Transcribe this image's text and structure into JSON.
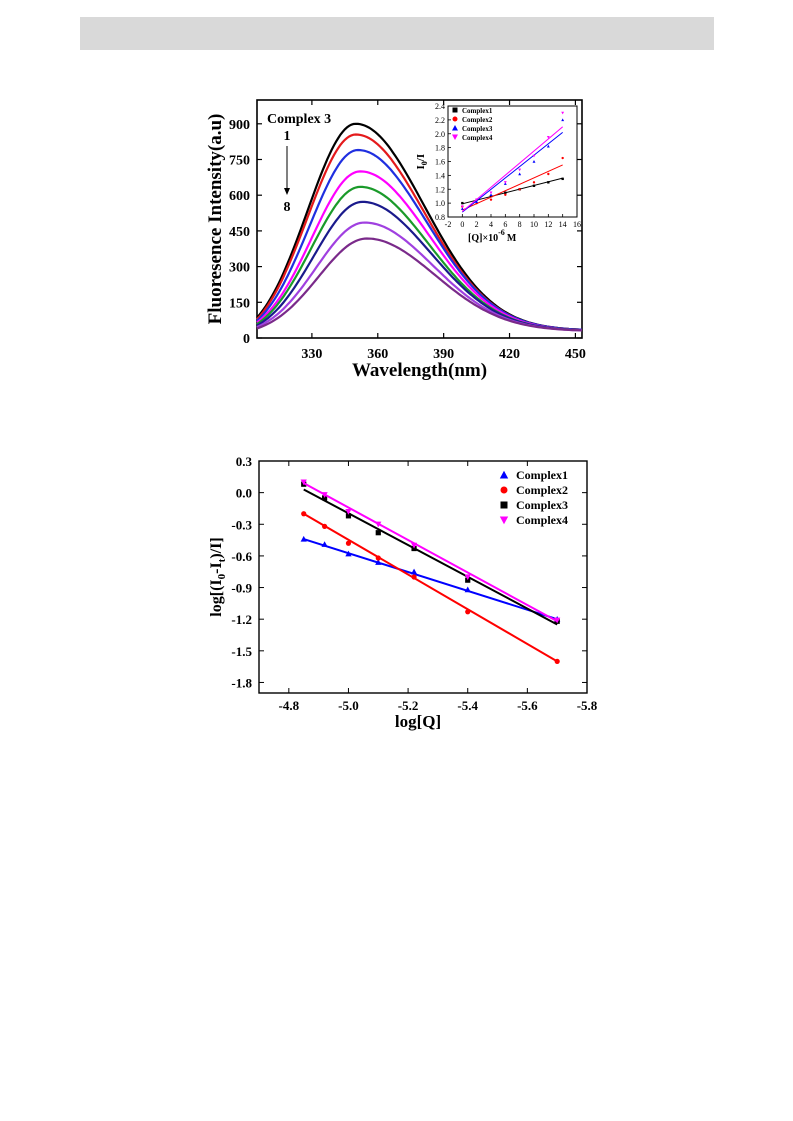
{
  "chart_data": [
    {
      "type": "line",
      "title": "",
      "annotation": "Complex 3",
      "arrow_start_label": "1",
      "arrow_end_label": "8",
      "xlabel": "Wavelength(nm)",
      "ylabel": "Fluoresence Intensity(a.u)",
      "xlim": [
        305,
        453
      ],
      "ylim": [
        0,
        1000
      ],
      "xticks": [
        "330",
        "360",
        "390",
        "420",
        "450"
      ],
      "yticks": [
        "0",
        "150",
        "300",
        "450",
        "600",
        "750",
        "900"
      ],
      "series": [
        {
          "color": "#000000",
          "peak_x": 350,
          "peak_y": 900,
          "y_at_305": 85,
          "y_at_453": 35
        },
        {
          "color": "#e41a1c",
          "peak_x": 350,
          "peak_y": 855,
          "y_at_305": 78,
          "y_at_453": 35
        },
        {
          "color": "#1f2fe0",
          "peak_x": 351,
          "peak_y": 790,
          "y_at_305": 72,
          "y_at_453": 35
        },
        {
          "color": "#ff00ff",
          "peak_x": 352,
          "peak_y": 700,
          "y_at_305": 65,
          "y_at_453": 33
        },
        {
          "color": "#1a9a2a",
          "peak_x": 352,
          "peak_y": 635,
          "y_at_305": 58,
          "y_at_453": 33
        },
        {
          "color": "#1a1a8c",
          "peak_x": 353,
          "peak_y": 572,
          "y_at_305": 52,
          "y_at_453": 33
        },
        {
          "color": "#a040e0",
          "peak_x": 354,
          "peak_y": 485,
          "y_at_305": 46,
          "y_at_453": 32
        },
        {
          "color": "#7a2a8a",
          "peak_x": 355,
          "peak_y": 418,
          "y_at_305": 40,
          "y_at_453": 32
        }
      ]
    },
    {
      "type": "scatter",
      "title": "",
      "xlabel": "[Q]×10",
      "xlabel_sup": "-6",
      "xlabel_unit": "M",
      "ylabel": "I",
      "ylabel_sub": "0",
      "ylabel_suffix": "/I",
      "xlim": [
        -2,
        16
      ],
      "ylim": [
        0.8,
        2.4
      ],
      "xticks": [
        "-2",
        "0",
        "2",
        "4",
        "6",
        "8",
        "10",
        "12",
        "14",
        "16"
      ],
      "yticks": [
        "0.8",
        "1.0",
        "1.2",
        "1.4",
        "1.6",
        "1.8",
        "2.0",
        "2.2",
        "2.4"
      ],
      "legend_position": "top-left",
      "series": [
        {
          "name": "Complex1",
          "color": "#000000",
          "marker": "square",
          "x": [
            0,
            2,
            4,
            6,
            8,
            10,
            12,
            14
          ],
          "y": [
            1.0,
            1.05,
            1.1,
            1.15,
            1.2,
            1.25,
            1.3,
            1.35
          ],
          "fit": [
            [
              0,
              0.99
            ],
            [
              14,
              1.36
            ]
          ]
        },
        {
          "name": "Complex2",
          "color": "#ff0000",
          "marker": "circle",
          "x": [
            0,
            2,
            4,
            6,
            8,
            10,
            12,
            14
          ],
          "y": [
            0.95,
            1.0,
            1.05,
            1.12,
            1.2,
            1.3,
            1.42,
            1.65
          ],
          "fit": [
            [
              0,
              0.9
            ],
            [
              14,
              1.55
            ]
          ]
        },
        {
          "name": "Complex3",
          "color": "#0000ff",
          "marker": "triangle-up",
          "x": [
            0,
            2,
            4,
            6,
            8,
            10,
            12,
            14
          ],
          "y": [
            0.92,
            1.02,
            1.12,
            1.28,
            1.42,
            1.6,
            1.82,
            2.2
          ],
          "fit": [
            [
              0,
              0.87
            ],
            [
              14,
              2.02
            ]
          ]
        },
        {
          "name": "Complex4",
          "color": "#ff00ff",
          "marker": "triangle-down",
          "x": [
            0,
            2,
            4,
            6,
            8,
            10,
            12,
            14
          ],
          "y": [
            0.95,
            1.05,
            1.15,
            1.3,
            1.48,
            1.68,
            1.95,
            2.3
          ],
          "fit": [
            [
              0,
              0.88
            ],
            [
              14,
              2.1
            ]
          ]
        }
      ]
    },
    {
      "type": "scatter",
      "title": "",
      "xlabel": "log[Q]",
      "ylabel": "log[(I",
      "ylabel_sub": "0",
      "ylabel_suffix": "-I",
      "ylabel_sub2": "t",
      "ylabel_end": ")/I]",
      "xlim": [
        -4.7,
        -5.8
      ],
      "ylim": [
        -1.9,
        0.3
      ],
      "xticks": [
        "-4.8",
        "-5.0",
        "-5.2",
        "-5.4",
        "-5.6",
        "-5.8"
      ],
      "yticks": [
        "0.3",
        "0.0",
        "-0.3",
        "-0.6",
        "-0.9",
        "-1.2",
        "-1.5",
        "-1.8"
      ],
      "legend_position": "top-right",
      "series": [
        {
          "name": "Complex1",
          "color": "#0000ff",
          "marker": "triangle-up",
          "x": [
            -4.85,
            -4.92,
            -5.0,
            -5.1,
            -5.22,
            -5.4,
            -5.7
          ],
          "y": [
            -0.44,
            -0.49,
            -0.58,
            -0.66,
            -0.75,
            -0.92,
            -1.2
          ],
          "fit": [
            [
              -4.85,
              -0.44
            ],
            [
              -5.7,
              -1.2
            ]
          ]
        },
        {
          "name": "Complex2",
          "color": "#ff0000",
          "marker": "circle",
          "x": [
            -4.85,
            -4.92,
            -5.0,
            -5.1,
            -5.22,
            -5.4,
            -5.7
          ],
          "y": [
            -0.2,
            -0.32,
            -0.48,
            -0.62,
            -0.8,
            -1.13,
            -1.6
          ],
          "fit": [
            [
              -4.85,
              -0.2
            ],
            [
              -5.7,
              -1.6
            ]
          ]
        },
        {
          "name": "Complex3",
          "color": "#000000",
          "marker": "square",
          "x": [
            -4.85,
            -4.92,
            -5.0,
            -5.1,
            -5.22,
            -5.4,
            -5.7
          ],
          "y": [
            0.08,
            -0.05,
            -0.22,
            -0.38,
            -0.53,
            -0.83,
            -1.22
          ],
          "fit": [
            [
              -4.85,
              0.03
            ],
            [
              -5.7,
              -1.25
            ]
          ]
        },
        {
          "name": "Complex4",
          "color": "#ff00ff",
          "marker": "triangle-down",
          "x": [
            -4.85,
            -4.92,
            -5.0,
            -5.1,
            -5.22,
            -5.4,
            -5.7
          ],
          "y": [
            0.1,
            -0.02,
            -0.18,
            -0.3,
            -0.5,
            -0.8,
            -1.21
          ],
          "fit": [
            [
              -4.85,
              0.09
            ],
            [
              -5.7,
              -1.22
            ]
          ]
        }
      ]
    }
  ]
}
